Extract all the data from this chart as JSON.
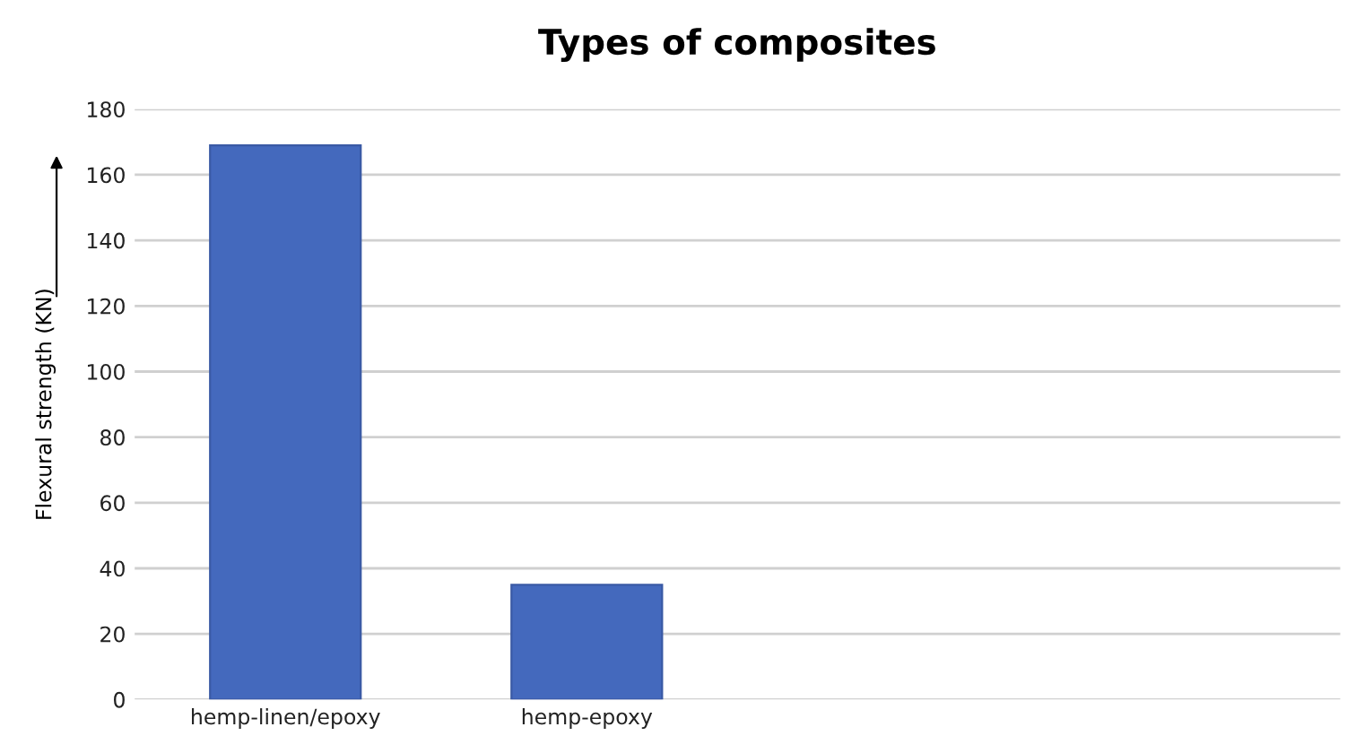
{
  "chart_data": {
    "type": "bar",
    "title": "Types of composites",
    "ylabel": "Flexural strength (KN)",
    "categories": [
      "hemp-linen/epoxy",
      "hemp-epoxy",
      null,
      null
    ],
    "values": [
      169,
      35,
      null,
      null
    ],
    "color": "#4469bd",
    "ylim": [
      0,
      180
    ],
    "yticks": [
      0,
      20,
      40,
      60,
      80,
      100,
      120,
      140,
      160,
      180
    ],
    "grid": "y"
  }
}
